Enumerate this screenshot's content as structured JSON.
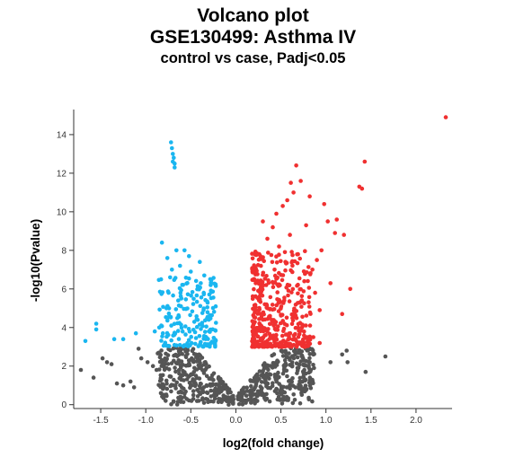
{
  "title": "Volcano plot",
  "subtitle": "GSE130499: Asthma IV",
  "subtitle2": "control vs case, Padj<0.05",
  "colors": {
    "up": "#f03030",
    "down": "#1ab6f0",
    "ns": "#555555",
    "axis": "#333333"
  },
  "chart_data": {
    "type": "scatter",
    "title": "Volcano plot",
    "xlabel": "log2(fold change)",
    "ylabel": "-log10(Pvalue)",
    "xlim": [
      -1.8,
      2.4
    ],
    "ylim": [
      -0.2,
      15.3
    ],
    "x_ticks": [
      -1.5,
      -1.0,
      -0.5,
      0.0,
      0.5,
      1.0,
      1.5,
      2.0
    ],
    "x_tick_labels": [
      "-1.5",
      "-1.0",
      "-0.5",
      "0.0",
      "0.5",
      "1.0",
      "1.5",
      "2.0"
    ],
    "y_ticks": [
      0,
      2,
      4,
      6,
      8,
      10,
      12,
      14
    ],
    "y_tick_labels": [
      "0",
      "2",
      "4",
      "6",
      "8",
      "10",
      "12",
      "14"
    ],
    "grid": false,
    "legend": "none",
    "series": [
      {
        "values": [
          [
            2.33,
            14.9
          ],
          [
            1.43,
            12.6
          ],
          [
            1.4,
            11.2
          ],
          [
            1.37,
            11.3
          ],
          [
            0.67,
            12.4
          ],
          [
            0.72,
            11.6
          ],
          [
            0.82,
            10.8
          ],
          [
            0.98,
            10.4
          ],
          [
            0.61,
            11.5
          ],
          [
            0.64,
            11.0
          ],
          [
            1.12,
            9.6
          ],
          [
            1.02,
            9.5
          ],
          [
            1.1,
            8.9
          ],
          [
            1.2,
            8.8
          ],
          [
            1.27,
            6.0
          ],
          [
            1.18,
            4.7
          ],
          [
            0.95,
            8.0
          ],
          [
            0.9,
            7.5
          ],
          [
            0.88,
            5.8
          ],
          [
            0.93,
            4.9
          ],
          [
            1.05,
            6.3
          ],
          [
            0.86,
            3.5
          ],
          [
            0.93,
            3.2
          ],
          [
            0.78,
            9.3
          ],
          [
            0.85,
            7.0
          ],
          [
            0.76,
            6.4
          ],
          [
            0.57,
            10.6
          ],
          [
            0.52,
            10.3
          ],
          [
            0.45,
            9.9
          ],
          [
            0.41,
            9.2
          ],
          [
            0.3,
            9.5
          ],
          [
            0.35,
            8.6
          ],
          [
            0.48,
            8.2
          ],
          [
            0.6,
            8.8
          ],
          [
            0.69,
            7.8
          ],
          [
            0.55,
            7.4
          ],
          [
            0.43,
            7.0
          ],
          [
            0.26,
            7.8
          ],
          [
            0.22,
            6.3
          ],
          [
            0.27,
            5.8
          ]
        ]
      },
      {
        "values": [
          [
            -0.72,
            13.6
          ],
          [
            -0.71,
            13.3
          ],
          [
            -0.7,
            13.0
          ],
          [
            -0.69,
            12.8
          ],
          [
            -0.68,
            12.5
          ],
          [
            -0.68,
            12.3
          ],
          [
            -0.7,
            12.6
          ],
          [
            -0.82,
            8.4
          ],
          [
            -0.76,
            7.6
          ],
          [
            -0.57,
            8.0
          ],
          [
            -0.52,
            7.7
          ],
          [
            -0.62,
            7.2
          ],
          [
            -0.5,
            6.9
          ],
          [
            -0.73,
            6.6
          ],
          [
            -0.4,
            7.4
          ],
          [
            -0.35,
            6.7
          ],
          [
            -0.28,
            6.2
          ],
          [
            -1.55,
            4.2
          ],
          [
            -1.55,
            3.9
          ],
          [
            -1.67,
            3.3
          ],
          [
            -1.25,
            3.4
          ],
          [
            -1.11,
            3.7
          ],
          [
            -1.35,
            3.4
          ],
          [
            -0.85,
            4.0
          ],
          [
            -0.9,
            3.8
          ],
          [
            -0.77,
            5.0
          ],
          [
            -0.64,
            5.4
          ],
          [
            -0.83,
            6.5
          ],
          [
            -0.71,
            7.0
          ],
          [
            -0.66,
            8.0
          ]
        ]
      },
      {
        "values": [
          [
            -1.72,
            1.8
          ],
          [
            -1.58,
            1.4
          ],
          [
            -1.48,
            2.4
          ],
          [
            -1.43,
            2.2
          ],
          [
            -1.38,
            2.1
          ],
          [
            -1.32,
            1.1
          ],
          [
            -1.25,
            1.0
          ],
          [
            -1.17,
            1.2
          ],
          [
            -1.13,
            0.9
          ],
          [
            -1.08,
            2.9
          ],
          [
            -1.05,
            2.4
          ],
          [
            -0.98,
            2.2
          ],
          [
            -0.92,
            2.0
          ],
          [
            -0.88,
            1.8
          ],
          [
            -0.83,
            0.6
          ],
          [
            -0.57,
            0.4
          ],
          [
            -0.49,
            1.0
          ],
          [
            -0.33,
            0.3
          ],
          [
            -0.21,
            0.6
          ],
          [
            -0.07,
            0.2
          ],
          [
            0.04,
            0.3
          ],
          [
            0.11,
            0.1
          ],
          [
            0.18,
            0.6
          ],
          [
            0.23,
            1.3
          ],
          [
            0.31,
            0.5
          ],
          [
            0.53,
            0.4
          ],
          [
            0.66,
            0.9
          ],
          [
            0.76,
            1.8
          ],
          [
            0.82,
            2.2
          ],
          [
            1.05,
            2.2
          ],
          [
            1.18,
            2.6
          ],
          [
            1.24,
            2.2
          ],
          [
            1.44,
            1.7
          ],
          [
            1.66,
            2.5
          ],
          [
            1.23,
            2.8
          ]
        ]
      }
    ]
  }
}
